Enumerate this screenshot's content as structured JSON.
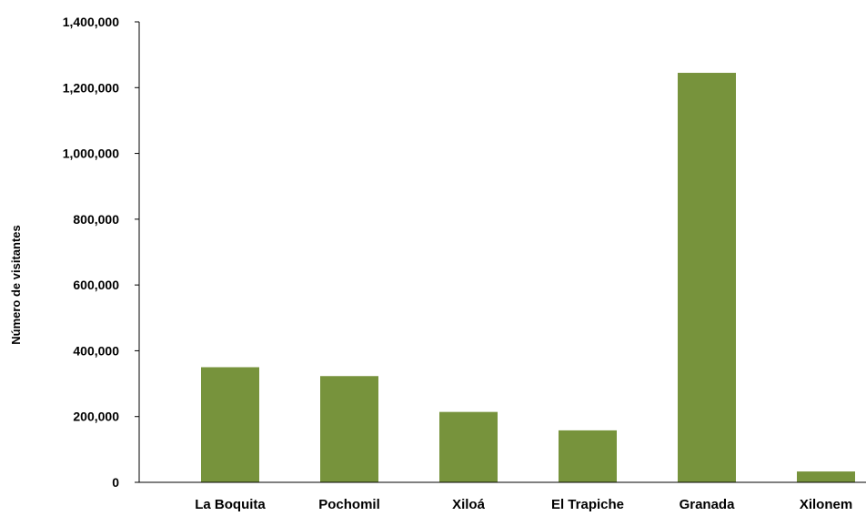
{
  "chart_data": {
    "type": "bar",
    "title": "",
    "xlabel": "",
    "ylabel": "Número de visitantes",
    "categories": [
      "La Boquita",
      "Pochomil",
      "Xiloá",
      "El Trapiche",
      "Granada",
      "Xilonem"
    ],
    "values": [
      350000,
      323000,
      214000,
      158000,
      1245000,
      33000
    ],
    "ylim": [
      0,
      1400000
    ],
    "yticks": [
      0,
      200000,
      400000,
      600000,
      800000,
      1000000,
      1200000,
      1400000
    ],
    "ytick_labels": [
      "0",
      "200,000",
      "400,000",
      "600,000",
      "800,000",
      "1,000,000",
      "1,200,000",
      "1,400,000"
    ],
    "bar_color": "#77933c",
    "grid": false,
    "legend": "none"
  }
}
